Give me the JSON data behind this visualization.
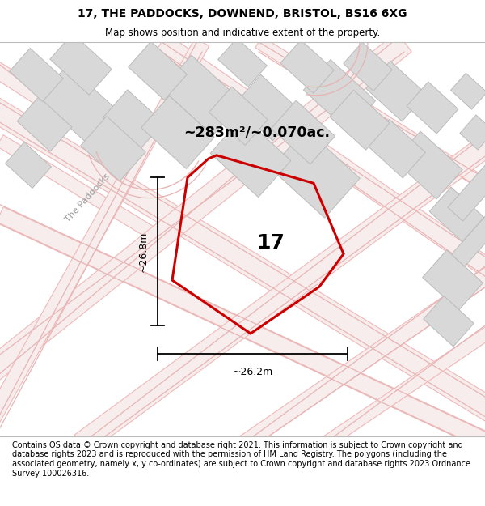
{
  "title": "17, THE PADDOCKS, DOWNEND, BRISTOL, BS16 6XG",
  "subtitle": "Map shows position and indicative extent of the property.",
  "area_label": "~283m²/~0.070ac.",
  "number_label": "17",
  "dim_height": "~26.8m",
  "dim_width": "~26.2m",
  "road_label": "The Paddocks",
  "footer": "Contains OS data © Crown copyright and database right 2021. This information is subject to Crown copyright and database rights 2023 and is reproduced with the permission of HM Land Registry. The polygons (including the associated geometry, namely x, y co-ordinates) are subject to Crown copyright and database rights 2023 Ordnance Survey 100026316.",
  "title_fontsize": 10,
  "subtitle_fontsize": 8.5,
  "footer_fontsize": 7.0,
  "map_bg": "#f2f0ee",
  "plot_color": "#cc0000",
  "road_line_color": "#f0b8b8",
  "road_fill_color": "#f5dede",
  "block_color": "#d8d8d8",
  "block_edge_color": "#bbbbbb",
  "white": "#ffffff"
}
